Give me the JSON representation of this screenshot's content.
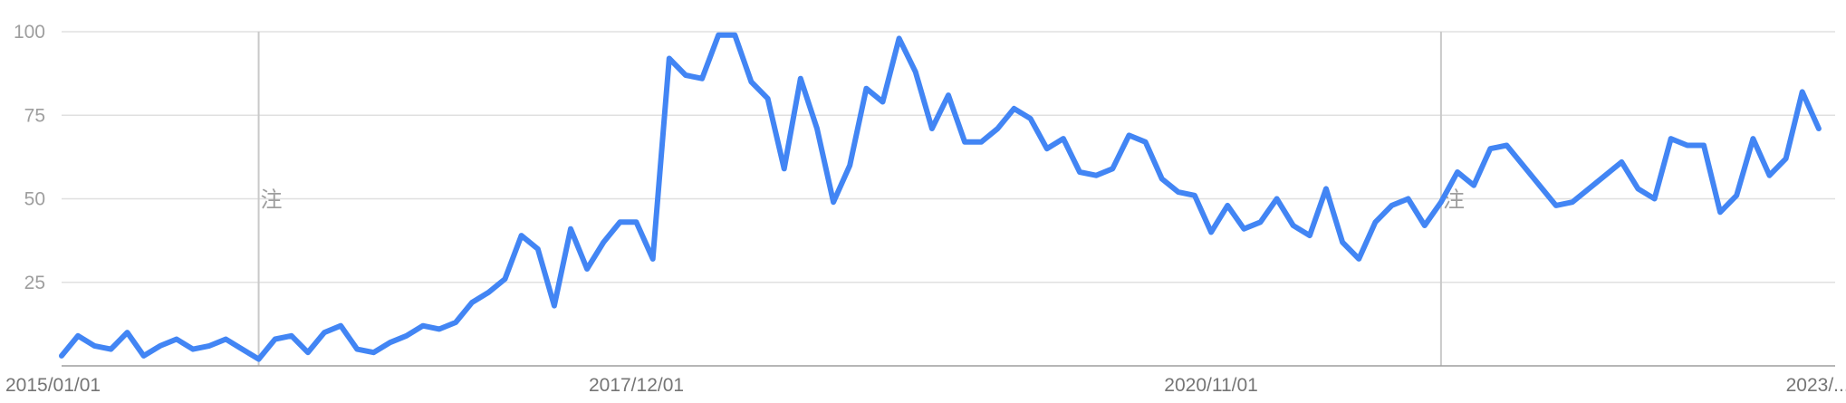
{
  "chart_data": {
    "type": "line",
    "title": "",
    "xlabel": "",
    "ylabel": "",
    "ylim": [
      0,
      100
    ],
    "grid": true,
    "legend": "none",
    "y_ticks": [
      "25",
      "50",
      "75",
      "100"
    ],
    "y_tick_values": [
      25,
      50,
      75,
      100
    ],
    "x_tick_labels": [
      "2015/01/01",
      "2017/12/01",
      "2020/11/01",
      "2023/..."
    ],
    "x_tick_dates": [
      "2015-01-01",
      "2017-12-01",
      "2020-11-01",
      "2023-10-01"
    ],
    "x_range": [
      "2015-01-01",
      "2024-01-01"
    ],
    "markers": [
      {
        "date": "2016-01-01",
        "label": "注"
      },
      {
        "date": "2022-01-01",
        "label": "注"
      }
    ],
    "series": [
      {
        "color": "#4285f4",
        "points": [
          [
            "2015-01-01",
            3
          ],
          [
            "2015-02-01",
            9
          ],
          [
            "2015-03-01",
            6
          ],
          [
            "2015-04-01",
            5
          ],
          [
            "2015-05-01",
            10
          ],
          [
            "2015-06-01",
            3
          ],
          [
            "2015-07-01",
            6
          ],
          [
            "2015-08-01",
            8
          ],
          [
            "2015-09-01",
            5
          ],
          [
            "2015-10-01",
            6
          ],
          [
            "2015-11-01",
            8
          ],
          [
            "2015-12-01",
            5
          ],
          [
            "2016-01-01",
            2
          ],
          [
            "2016-02-01",
            8
          ],
          [
            "2016-03-01",
            9
          ],
          [
            "2016-04-01",
            4
          ],
          [
            "2016-05-01",
            10
          ],
          [
            "2016-06-01",
            12
          ],
          [
            "2016-07-01",
            5
          ],
          [
            "2016-08-01",
            4
          ],
          [
            "2016-09-01",
            7
          ],
          [
            "2016-10-01",
            9
          ],
          [
            "2016-11-01",
            12
          ],
          [
            "2016-12-01",
            11
          ],
          [
            "2017-01-01",
            13
          ],
          [
            "2017-02-01",
            19
          ],
          [
            "2017-03-01",
            22
          ],
          [
            "2017-04-01",
            26
          ],
          [
            "2017-05-01",
            39
          ],
          [
            "2017-06-01",
            35
          ],
          [
            "2017-07-01",
            18
          ],
          [
            "2017-08-01",
            41
          ],
          [
            "2017-09-01",
            29
          ],
          [
            "2017-10-01",
            37
          ],
          [
            "2017-11-01",
            43
          ],
          [
            "2017-12-01",
            43
          ],
          [
            "2018-01-01",
            32
          ],
          [
            "2018-02-01",
            92
          ],
          [
            "2018-03-01",
            87
          ],
          [
            "2018-04-01",
            86
          ],
          [
            "2018-05-01",
            99
          ],
          [
            "2018-06-01",
            99
          ],
          [
            "2018-07-01",
            85
          ],
          [
            "2018-08-01",
            80
          ],
          [
            "2018-09-01",
            59
          ],
          [
            "2018-10-01",
            86
          ],
          [
            "2018-11-01",
            71
          ],
          [
            "2018-12-01",
            49
          ],
          [
            "2019-01-01",
            60
          ],
          [
            "2019-02-01",
            83
          ],
          [
            "2019-03-01",
            79
          ],
          [
            "2019-04-01",
            98
          ],
          [
            "2019-05-01",
            88
          ],
          [
            "2019-06-01",
            71
          ],
          [
            "2019-07-01",
            81
          ],
          [
            "2019-08-01",
            67
          ],
          [
            "2019-09-01",
            67
          ],
          [
            "2019-10-01",
            71
          ],
          [
            "2019-11-01",
            77
          ],
          [
            "2019-12-01",
            74
          ],
          [
            "2020-01-01",
            65
          ],
          [
            "2020-02-01",
            68
          ],
          [
            "2020-03-01",
            58
          ],
          [
            "2020-04-01",
            57
          ],
          [
            "2020-05-01",
            59
          ],
          [
            "2020-06-01",
            69
          ],
          [
            "2020-07-01",
            67
          ],
          [
            "2020-08-01",
            56
          ],
          [
            "2020-09-01",
            52
          ],
          [
            "2020-10-01",
            51
          ],
          [
            "2020-11-01",
            40
          ],
          [
            "2020-12-01",
            48
          ],
          [
            "2021-01-01",
            41
          ],
          [
            "2021-02-01",
            43
          ],
          [
            "2021-03-01",
            50
          ],
          [
            "2021-04-01",
            42
          ],
          [
            "2021-05-01",
            39
          ],
          [
            "2021-06-01",
            53
          ],
          [
            "2021-07-01",
            37
          ],
          [
            "2021-08-01",
            32
          ],
          [
            "2021-09-01",
            43
          ],
          [
            "2021-10-01",
            48
          ],
          [
            "2021-11-01",
            50
          ],
          [
            "2021-12-01",
            42
          ],
          [
            "2022-01-01",
            49
          ],
          [
            "2022-02-01",
            58
          ],
          [
            "2022-03-01",
            54
          ],
          [
            "2022-04-01",
            65
          ],
          [
            "2022-05-01",
            66
          ],
          [
            "2022-08-01",
            48
          ],
          [
            "2022-09-01",
            49
          ],
          [
            "2022-12-01",
            61
          ],
          [
            "2023-01-01",
            53
          ],
          [
            "2023-02-01",
            50
          ],
          [
            "2023-03-01",
            68
          ],
          [
            "2023-04-01",
            66
          ],
          [
            "2023-05-01",
            66
          ],
          [
            "2023-06-01",
            46
          ],
          [
            "2023-07-01",
            51
          ],
          [
            "2023-08-01",
            68
          ],
          [
            "2023-09-01",
            57
          ],
          [
            "2023-10-01",
            62
          ],
          [
            "2023-11-01",
            82
          ],
          [
            "2023-12-01",
            71
          ]
        ]
      }
    ]
  }
}
